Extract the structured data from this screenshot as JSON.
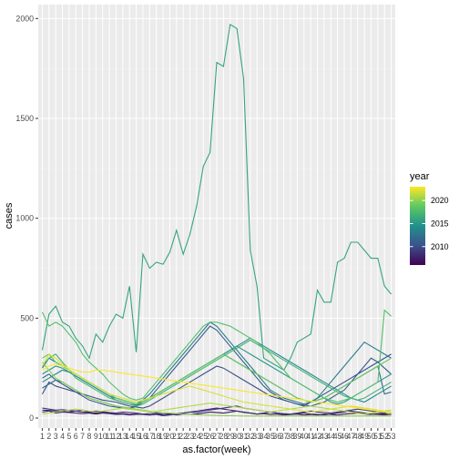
{
  "chart_data": {
    "type": "line",
    "xlabel": "as.factor(week)",
    "ylabel": "cases",
    "categories": [
      "1",
      "2",
      "3",
      "4",
      "5",
      "6",
      "7",
      "8",
      "9",
      "10",
      "11",
      "12",
      "13",
      "14",
      "15",
      "16",
      "17",
      "18",
      "19",
      "20",
      "21",
      "22",
      "23",
      "24",
      "25",
      "26",
      "27",
      "28",
      "29",
      "30",
      "31",
      "32",
      "33",
      "34",
      "35",
      "36",
      "37",
      "38",
      "39",
      "40",
      "41",
      "42",
      "43",
      "44",
      "45",
      "46",
      "47",
      "48",
      "49",
      "50",
      "51",
      "52",
      "53"
    ],
    "ylim": [
      -50,
      2070
    ],
    "yticks": [
      0,
      500,
      1000,
      1500,
      2000
    ],
    "grid": true,
    "legend": {
      "title": "year",
      "position": "right",
      "type": "colorbar",
      "range": [
        2006,
        2023
      ],
      "ticks": [
        2010,
        2015,
        2020
      ],
      "colors": [
        "#440154",
        "#3b528b",
        "#21908d",
        "#5dc963",
        "#fde725"
      ]
    },
    "series": [
      {
        "year": 2007,
        "values": [
          40,
          38,
          35,
          33,
          30,
          35,
          30,
          28,
          25,
          30,
          25,
          20,
          22,
          18,
          20,
          18,
          15,
          20,
          18,
          22,
          15,
          20,
          18,
          20,
          25,
          30,
          28,
          25,
          30,
          35,
          28,
          25,
          20,
          22,
          18,
          20,
          15,
          18,
          20,
          15,
          18,
          15,
          20,
          18,
          15,
          20,
          22,
          25,
          20,
          18,
          22,
          20,
          18
        ]
      },
      {
        "year": 2008,
        "values": [
          30,
          35,
          25,
          30,
          28,
          25,
          22,
          25,
          20,
          25,
          22,
          18,
          20,
          15,
          18,
          20,
          15,
          18,
          12,
          15,
          20,
          25,
          30,
          35,
          40,
          45,
          50,
          45,
          40,
          35,
          30,
          25,
          20,
          25,
          30,
          25,
          20,
          18,
          22,
          25,
          20,
          18,
          15,
          20,
          25,
          30,
          35,
          30,
          25,
          20,
          18,
          15,
          20
        ]
      },
      {
        "year": 2009,
        "values": [
          50,
          45,
          40,
          42,
          38,
          35,
          40,
          30,
          35,
          32,
          28,
          25,
          30,
          28,
          25,
          20,
          22,
          25,
          20,
          18,
          22,
          25,
          30,
          28,
          35,
          40,
          45,
          50,
          55,
          60,
          50,
          45,
          40,
          35,
          30,
          25,
          22,
          20,
          25,
          30,
          35,
          30,
          28,
          25,
          30,
          35,
          40,
          45,
          40,
          35,
          30,
          25,
          30
        ]
      },
      {
        "year": 2010,
        "values": [
          120,
          180,
          160,
          150,
          140,
          130,
          120,
          110,
          100,
          90,
          85,
          80,
          70,
          60,
          55,
          50,
          60,
          80,
          100,
          120,
          140,
          160,
          180,
          200,
          220,
          240,
          260,
          250,
          230,
          210,
          190,
          170,
          150,
          130,
          110,
          100,
          90,
          80,
          70,
          60,
          80,
          100,
          120,
          140,
          160,
          180,
          200,
          220,
          240,
          260,
          280,
          300,
          320
        ]
      },
      {
        "year": 2011,
        "values": [
          200,
          220,
          190,
          170,
          150,
          130,
          110,
          90,
          80,
          70,
          60,
          55,
          50,
          45,
          60,
          80,
          100,
          140,
          180,
          220,
          260,
          300,
          340,
          380,
          420,
          460,
          440,
          400,
          360,
          320,
          280,
          240,
          200,
          160,
          130,
          110,
          90,
          80,
          70,
          65,
          60,
          70,
          80,
          100,
          120,
          140,
          180,
          220,
          260,
          300,
          280,
          250,
          220
        ]
      },
      {
        "year": 2012,
        "values": [
          150,
          170,
          190,
          180,
          160,
          140,
          120,
          100,
          90,
          80,
          70,
          60,
          55,
          50,
          60,
          80,
          100,
          120,
          140,
          160,
          180,
          200,
          220,
          240,
          260,
          280,
          300,
          320,
          300,
          280,
          260,
          240,
          220,
          200,
          180,
          160,
          140,
          120,
          100,
          90,
          80,
          90,
          100,
          120,
          140,
          160,
          180,
          200,
          220,
          240,
          260,
          120,
          130
        ]
      },
      {
        "year": 2013,
        "values": [
          250,
          300,
          280,
          260,
          240,
          220,
          200,
          180,
          160,
          140,
          120,
          100,
          90,
          80,
          70,
          90,
          120,
          160,
          200,
          240,
          280,
          320,
          360,
          400,
          440,
          480,
          460,
          420,
          380,
          340,
          300,
          260,
          220,
          180,
          140,
          120,
          100,
          90,
          80,
          70,
          80,
          100,
          140,
          180,
          220,
          260,
          300,
          340,
          380,
          360,
          340,
          320,
          300
        ]
      },
      {
        "year": 2014,
        "values": [
          180,
          200,
          220,
          240,
          230,
          210,
          190,
          170,
          150,
          130,
          110,
          90,
          80,
          70,
          65,
          80,
          100,
          120,
          140,
          160,
          180,
          200,
          220,
          240,
          260,
          280,
          300,
          320,
          340,
          360,
          380,
          400,
          380,
          360,
          340,
          320,
          300,
          280,
          260,
          240,
          220,
          200,
          180,
          160,
          140,
          120,
          100,
          90,
          80,
          100,
          120,
          140,
          160
        ]
      },
      {
        "year": 2015,
        "values": [
          220,
          240,
          260,
          250,
          230,
          210,
          190,
          170,
          150,
          130,
          110,
          100,
          90,
          80,
          70,
          80,
          100,
          120,
          140,
          160,
          180,
          200,
          220,
          240,
          260,
          280,
          300,
          320,
          340,
          360,
          340,
          320,
          300,
          280,
          260,
          240,
          220,
          200,
          180,
          160,
          140,
          120,
          100,
          80,
          70,
          80,
          100,
          120,
          140,
          160,
          180,
          200,
          220
        ]
      },
      {
        "year": 2016,
        "values": [
          340,
          520,
          560,
          480,
          460,
          400,
          360,
          300,
          420,
          380,
          460,
          520,
          500,
          660,
          330,
          820,
          750,
          780,
          770,
          830,
          940,
          820,
          920,
          1060,
          1260,
          1330,
          1780,
          1760,
          1970,
          1950,
          1700,
          840,
          660,
          300,
          280,
          260,
          240,
          300,
          380,
          400,
          420,
          640,
          580,
          580,
          780,
          800,
          880,
          880,
          840,
          800,
          800,
          660,
          620
        ]
      },
      {
        "year": 2017,
        "values": [
          260,
          300,
          320,
          280,
          240,
          200,
          180,
          160,
          140,
          120,
          100,
          90,
          80,
          70,
          60,
          70,
          90,
          110,
          130,
          150,
          170,
          190,
          210,
          230,
          250,
          270,
          290,
          310,
          330,
          350,
          370,
          390,
          370,
          350,
          330,
          310,
          290,
          270,
          250,
          230,
          210,
          190,
          170,
          150,
          130,
          110,
          100,
          90,
          100,
          120,
          140,
          160,
          180
        ]
      },
      {
        "year": 2018,
        "values": [
          530,
          460,
          480,
          460,
          420,
          380,
          320,
          280,
          250,
          220,
          180,
          150,
          120,
          100,
          90,
          100,
          140,
          180,
          220,
          260,
          300,
          340,
          380,
          420,
          460,
          480,
          480,
          470,
          460,
          440,
          420,
          400,
          380,
          350,
          320,
          280,
          240,
          200,
          180,
          160,
          140,
          120,
          100,
          90,
          80,
          90,
          100,
          120,
          140,
          160,
          180,
          540,
          510
        ]
      },
      {
        "year": 2019,
        "values": [
          300,
          320,
          280,
          260,
          240,
          220,
          200,
          180,
          160,
          140,
          120,
          100,
          90,
          80,
          70,
          80,
          100,
          120,
          140,
          160,
          180,
          200,
          220,
          240,
          260,
          280,
          300,
          320,
          300,
          280,
          260,
          240,
          220,
          200,
          180,
          160,
          140,
          120,
          100,
          90,
          80,
          90,
          100,
          120,
          140,
          160,
          180,
          200,
          220,
          240,
          260,
          280,
          300
        ]
      },
      {
        "year": 2020,
        "values": [
          280,
          240,
          200,
          180,
          160,
          140,
          120,
          100,
          90,
          80,
          70,
          60,
          55,
          50,
          45,
          40,
          35,
          30,
          28,
          25,
          22,
          20,
          18,
          16,
          15,
          14,
          13,
          12,
          12,
          11,
          10,
          10,
          10,
          10,
          10,
          10,
          10,
          10,
          10,
          10,
          10,
          10,
          10,
          10,
          10,
          10,
          10,
          10,
          10,
          10,
          10,
          10,
          10
        ]
      },
      {
        "year": 2021,
        "values": [
          20,
          25,
          30,
          35,
          40,
          45,
          40,
          35,
          30,
          35,
          40,
          45,
          50,
          45,
          40,
          35,
          30,
          35,
          40,
          45,
          50,
          55,
          60,
          65,
          70,
          75,
          70,
          65,
          60,
          55,
          50,
          45,
          40,
          35,
          30,
          35,
          40,
          45,
          50,
          55,
          60,
          55,
          50,
          45,
          40,
          35,
          30,
          25,
          20,
          25,
          30,
          35,
          40
        ]
      },
      {
        "year": 2022,
        "values": [
          260,
          320,
          300,
          270,
          240,
          220,
          200,
          180,
          160,
          140,
          120,
          110,
          100,
          90,
          80,
          90,
          100,
          110,
          120,
          130,
          140,
          150,
          160,
          150,
          140,
          130,
          120,
          110,
          100,
          90,
          80,
          75,
          70,
          65,
          60,
          55,
          50,
          45,
          40,
          35,
          30,
          35,
          40,
          45,
          50,
          55,
          60,
          55,
          50,
          45,
          40,
          35,
          30
        ]
      },
      {
        "year": 2023,
        "values": [
          240,
          260,
          270,
          260,
          250,
          240,
          230,
          230,
          240,
          240,
          235,
          230,
          225,
          220,
          215,
          210,
          205,
          200,
          195,
          190,
          185,
          180,
          175,
          170,
          165,
          160,
          155,
          150,
          145,
          140,
          135,
          130,
          125,
          120,
          115,
          110,
          105,
          100,
          95,
          90,
          85,
          80,
          75,
          70,
          65,
          60,
          55,
          50,
          45,
          40,
          35,
          30,
          25
        ]
      }
    ]
  }
}
